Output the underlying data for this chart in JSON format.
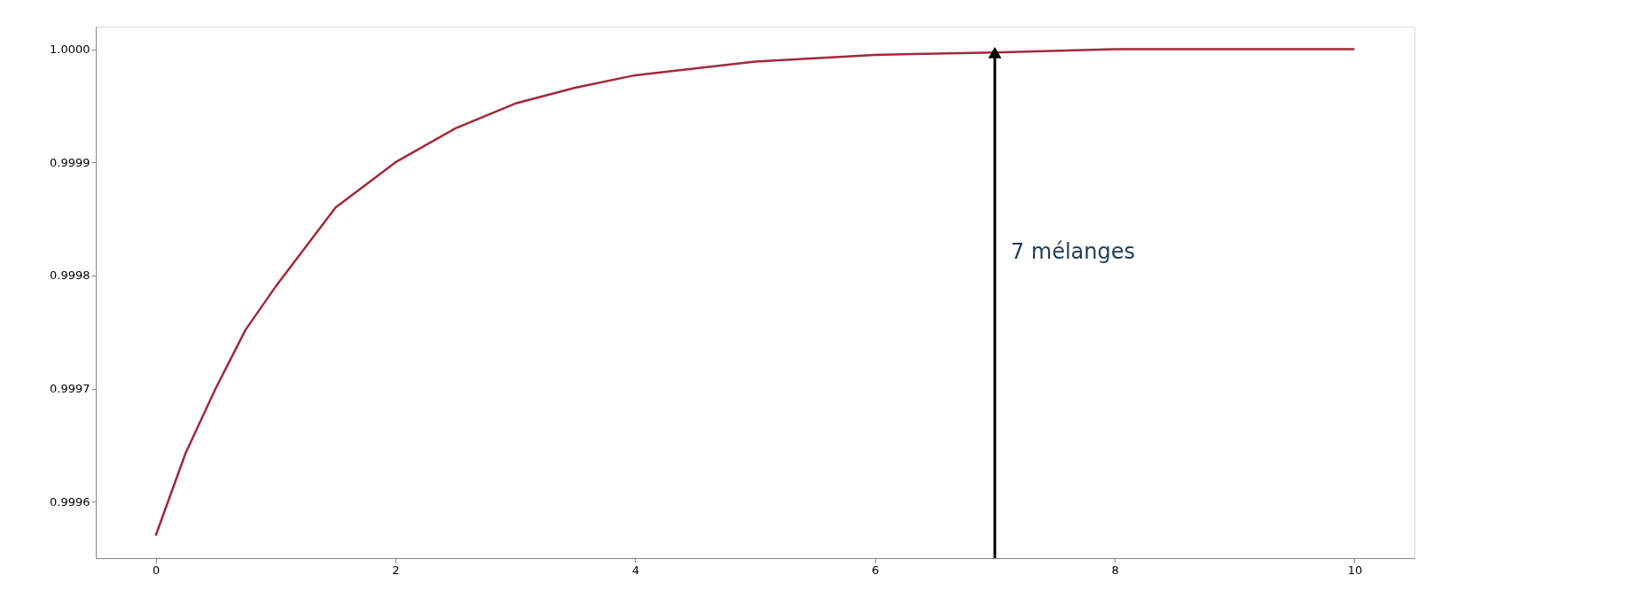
{
  "chart_data": {
    "type": "line",
    "x": [
      0,
      0.25,
      0.5,
      0.75,
      1,
      1.5,
      2,
      2.5,
      3,
      3.5,
      4,
      5,
      6,
      7,
      8,
      9,
      10
    ],
    "series": [
      {
        "color": "#a3283a",
        "values": [
          0.99957,
          0.999643,
          0.9997,
          0.999752,
          0.99979,
          0.99986,
          0.9999,
          0.99993,
          0.999952,
          0.999966,
          0.999977,
          0.999989,
          0.999995,
          0.999997,
          1.0,
          1.0,
          1.0
        ]
      }
    ],
    "xlim": [
      -0.5,
      10.5
    ],
    "xticks": [
      0,
      2,
      4,
      6,
      8,
      10
    ],
    "ylim": [
      0.99955,
      1.00002
    ],
    "yticks": [
      0.9996,
      0.9997,
      0.9998,
      0.9999,
      {
        "value": 1.0,
        "label": "1.0000"
      }
    ],
    "annotations": [
      "7 mélanges"
    ],
    "ref_lines": [
      {
        "axis": "x",
        "value": 7,
        "color": "#000000"
      }
    ],
    "grid": false,
    "marker": "none",
    "line_style": "solid"
  }
}
